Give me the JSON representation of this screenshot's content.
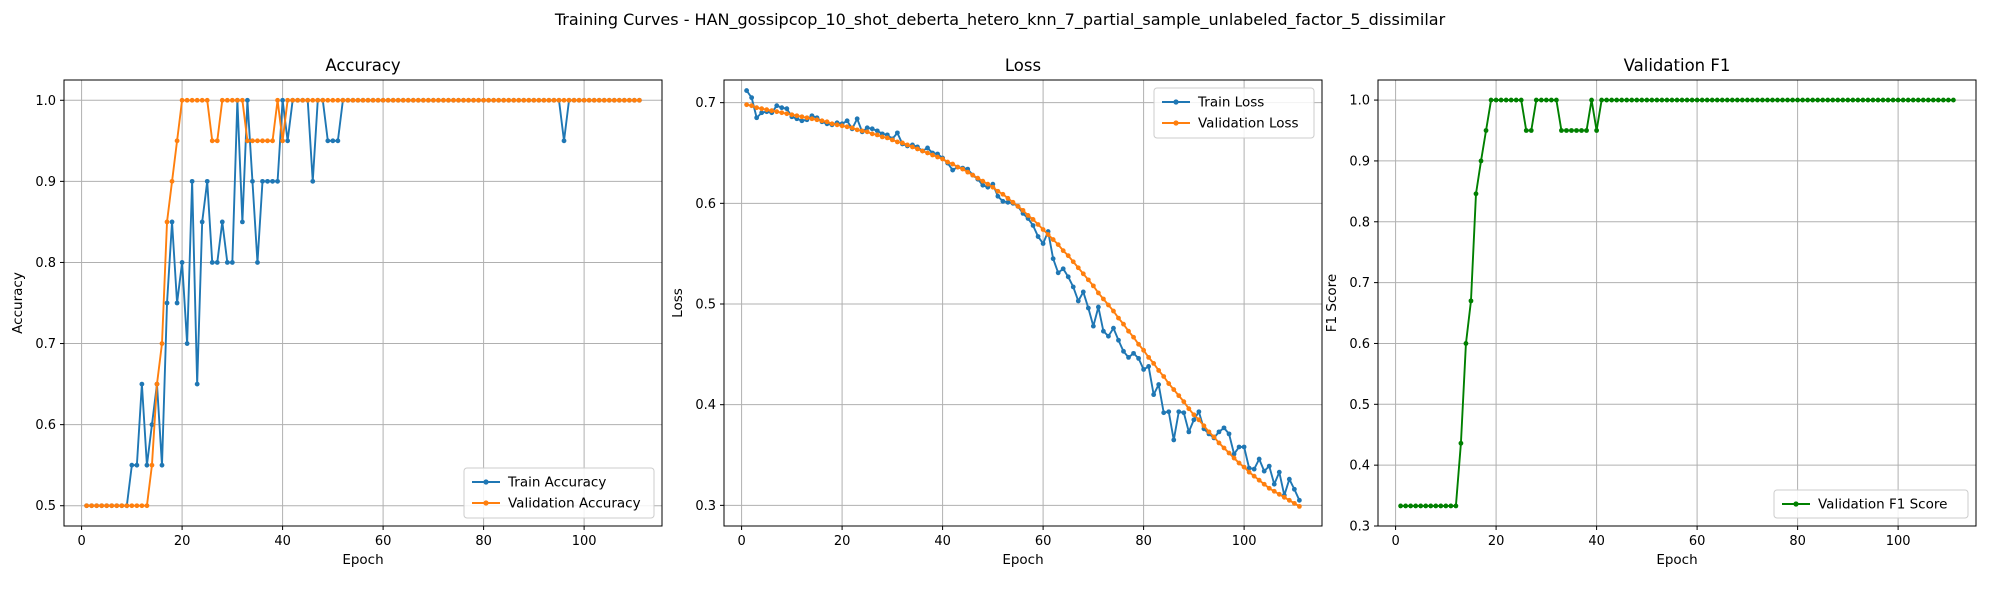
{
  "figure": {
    "title": "Training Curves - HAN_gossipcop_10_shot_deberta_hetero_knn_7_partial_sample_unlabeled_factor_5_dissimilar"
  },
  "colors": {
    "train": "#1f77b4",
    "validation": "#ff7f0e",
    "f1": "#008000",
    "grid": "#b0b0b0",
    "axis": "#000000"
  },
  "chart_data": [
    {
      "type": "line",
      "title": "Accuracy",
      "xlabel": "Epoch",
      "ylabel": "Accuracy",
      "xlim": [
        -3.5,
        115.5
      ],
      "ylim": [
        0.475,
        1.025
      ],
      "xticks": [
        0,
        20,
        40,
        60,
        80,
        100
      ],
      "yticks": [
        0.5,
        0.6,
        0.7,
        0.8,
        0.9,
        1.0
      ],
      "grid": true,
      "legend_position": "lower-right",
      "series": [
        {
          "name": "Train Accuracy",
          "color": "#1f77b4",
          "x_start": 1,
          "values": [
            0.5,
            0.5,
            0.5,
            0.5,
            0.5,
            0.5,
            0.5,
            0.5,
            0.5,
            0.55,
            0.55,
            0.65,
            0.55,
            0.6,
            0.65,
            0.55,
            0.75,
            0.85,
            0.75,
            0.8,
            0.7,
            0.9,
            0.65,
            0.85,
            0.9,
            0.8,
            0.8,
            0.85,
            0.8,
            0.8,
            1.0,
            0.85,
            1.0,
            0.9,
            0.8,
            0.9,
            0.9,
            0.9,
            0.9,
            1.0,
            0.95,
            1.0,
            1.0,
            1.0,
            1.0,
            0.9,
            1.0,
            1.0,
            0.95,
            0.95,
            0.95,
            1.0,
            1.0,
            1.0,
            1.0,
            1.0,
            1.0,
            1.0,
            1.0,
            1.0,
            1.0,
            1.0,
            1.0,
            1.0,
            1.0,
            1.0,
            1.0,
            1.0,
            1.0,
            1.0,
            1.0,
            1.0,
            1.0,
            1.0,
            1.0,
            1.0,
            1.0,
            1.0,
            1.0,
            1.0,
            1.0,
            1.0,
            1.0,
            1.0,
            1.0,
            1.0,
            1.0,
            1.0,
            1.0,
            1.0,
            1.0,
            1.0,
            1.0,
            1.0,
            1.0,
            0.95,
            1.0,
            1.0,
            1.0,
            1.0,
            1.0,
            1.0,
            1.0,
            1.0,
            1.0,
            1.0,
            1.0,
            1.0,
            1.0,
            1.0,
            1.0
          ]
        },
        {
          "name": "Validation Accuracy",
          "color": "#ff7f0e",
          "x_start": 1,
          "values": [
            0.5,
            0.5,
            0.5,
            0.5,
            0.5,
            0.5,
            0.5,
            0.5,
            0.5,
            0.5,
            0.5,
            0.5,
            0.5,
            0.55,
            0.65,
            0.7,
            0.85,
            0.9,
            0.95,
            1.0,
            1.0,
            1.0,
            1.0,
            1.0,
            1.0,
            0.95,
            0.95,
            1.0,
            1.0,
            1.0,
            1.0,
            1.0,
            0.95,
            0.95,
            0.95,
            0.95,
            0.95,
            0.95,
            1.0,
            0.95,
            1.0,
            1.0,
            1.0,
            1.0,
            1.0,
            1.0,
            1.0,
            1.0,
            1.0,
            1.0,
            1.0,
            1.0,
            1.0,
            1.0,
            1.0,
            1.0,
            1.0,
            1.0,
            1.0,
            1.0,
            1.0,
            1.0,
            1.0,
            1.0,
            1.0,
            1.0,
            1.0,
            1.0,
            1.0,
            1.0,
            1.0,
            1.0,
            1.0,
            1.0,
            1.0,
            1.0,
            1.0,
            1.0,
            1.0,
            1.0,
            1.0,
            1.0,
            1.0,
            1.0,
            1.0,
            1.0,
            1.0,
            1.0,
            1.0,
            1.0,
            1.0,
            1.0,
            1.0,
            1.0,
            1.0,
            1.0,
            1.0,
            1.0,
            1.0,
            1.0,
            1.0,
            1.0,
            1.0,
            1.0,
            1.0,
            1.0,
            1.0,
            1.0,
            1.0,
            1.0,
            1.0
          ]
        }
      ]
    },
    {
      "type": "line",
      "title": "Loss",
      "xlabel": "Epoch",
      "ylabel": "Loss",
      "xlim": [
        -3.5,
        115.5
      ],
      "ylim": [
        0.2795,
        0.7225
      ],
      "xticks": [
        0,
        20,
        40,
        60,
        80,
        100
      ],
      "yticks": [
        0.3,
        0.4,
        0.5,
        0.6,
        0.7
      ],
      "grid": true,
      "legend_position": "upper-right",
      "series": [
        {
          "name": "Train Loss",
          "color": "#1f77b4",
          "x_start": 1,
          "values": [
            0.712,
            0.705,
            0.685,
            0.69,
            0.691,
            0.69,
            0.697,
            0.695,
            0.694,
            0.686,
            0.684,
            0.682,
            0.683,
            0.687,
            0.685,
            0.681,
            0.679,
            0.678,
            0.68,
            0.679,
            0.682,
            0.674,
            0.684,
            0.671,
            0.675,
            0.674,
            0.672,
            0.669,
            0.668,
            0.664,
            0.67,
            0.659,
            0.657,
            0.658,
            0.656,
            0.652,
            0.655,
            0.65,
            0.649,
            0.645,
            0.64,
            0.633,
            0.636,
            0.635,
            0.634,
            0.628,
            0.624,
            0.618,
            0.616,
            0.619,
            0.607,
            0.602,
            0.601,
            0.6,
            0.597,
            0.59,
            0.585,
            0.578,
            0.567,
            0.56,
            0.572,
            0.545,
            0.531,
            0.535,
            0.527,
            0.517,
            0.503,
            0.512,
            0.496,
            0.478,
            0.497,
            0.473,
            0.468,
            0.476,
            0.464,
            0.453,
            0.447,
            0.451,
            0.446,
            0.435,
            0.438,
            0.41,
            0.42,
            0.392,
            0.393,
            0.365,
            0.393,
            0.392,
            0.373,
            0.385,
            0.393,
            0.376,
            0.371,
            0.367,
            0.373,
            0.377,
            0.371,
            0.351,
            0.358,
            0.358,
            0.337,
            0.336,
            0.346,
            0.334,
            0.339,
            0.321,
            0.333,
            0.31,
            0.326,
            0.316,
            0.305
          ]
        },
        {
          "name": "Validation Loss",
          "color": "#ff7f0e",
          "x_start": 1,
          "values": [
            0.698,
            0.697,
            0.695,
            0.694,
            0.693,
            0.692,
            0.691,
            0.69,
            0.689,
            0.688,
            0.687,
            0.686,
            0.685,
            0.684,
            0.683,
            0.682,
            0.681,
            0.679,
            0.678,
            0.677,
            0.676,
            0.675,
            0.673,
            0.672,
            0.671,
            0.669,
            0.668,
            0.666,
            0.665,
            0.663,
            0.661,
            0.66,
            0.658,
            0.656,
            0.654,
            0.652,
            0.65,
            0.648,
            0.646,
            0.644,
            0.641,
            0.639,
            0.636,
            0.634,
            0.631,
            0.628,
            0.625,
            0.622,
            0.619,
            0.616,
            0.612,
            0.609,
            0.605,
            0.601,
            0.597,
            0.593,
            0.588,
            0.584,
            0.579,
            0.574,
            0.569,
            0.564,
            0.559,
            0.553,
            0.548,
            0.542,
            0.536,
            0.53,
            0.524,
            0.518,
            0.511,
            0.505,
            0.499,
            0.493,
            0.486,
            0.48,
            0.473,
            0.467,
            0.46,
            0.454,
            0.447,
            0.441,
            0.434,
            0.428,
            0.421,
            0.415,
            0.409,
            0.403,
            0.396,
            0.39,
            0.385,
            0.379,
            0.373,
            0.368,
            0.362,
            0.357,
            0.352,
            0.347,
            0.342,
            0.338,
            0.333,
            0.329,
            0.325,
            0.321,
            0.317,
            0.314,
            0.311,
            0.308,
            0.305,
            0.302,
            0.299
          ]
        }
      ]
    },
    {
      "type": "line",
      "title": "Validation F1",
      "xlabel": "Epoch",
      "ylabel": "F1 Score",
      "xlim": [
        -3.5,
        115.5
      ],
      "ylim": [
        0.3,
        1.033
      ],
      "xticks": [
        0,
        20,
        40,
        60,
        80,
        100
      ],
      "yticks": [
        0.3,
        0.4,
        0.5,
        0.6,
        0.7,
        0.8,
        0.9,
        1.0
      ],
      "grid": true,
      "legend_position": "lower-right",
      "series": [
        {
          "name": "Validation F1 Score",
          "color": "#008000",
          "x_start": 1,
          "values": [
            0.333,
            0.333,
            0.333,
            0.333,
            0.333,
            0.333,
            0.333,
            0.333,
            0.333,
            0.333,
            0.333,
            0.333,
            0.436,
            0.6,
            0.67,
            0.846,
            0.9,
            0.95,
            1.0,
            1.0,
            1.0,
            1.0,
            1.0,
            1.0,
            1.0,
            0.95,
            0.95,
            1.0,
            1.0,
            1.0,
            1.0,
            1.0,
            0.95,
            0.95,
            0.95,
            0.95,
            0.95,
            0.95,
            1.0,
            0.95,
            1.0,
            1.0,
            1.0,
            1.0,
            1.0,
            1.0,
            1.0,
            1.0,
            1.0,
            1.0,
            1.0,
            1.0,
            1.0,
            1.0,
            1.0,
            1.0,
            1.0,
            1.0,
            1.0,
            1.0,
            1.0,
            1.0,
            1.0,
            1.0,
            1.0,
            1.0,
            1.0,
            1.0,
            1.0,
            1.0,
            1.0,
            1.0,
            1.0,
            1.0,
            1.0,
            1.0,
            1.0,
            1.0,
            1.0,
            1.0,
            1.0,
            1.0,
            1.0,
            1.0,
            1.0,
            1.0,
            1.0,
            1.0,
            1.0,
            1.0,
            1.0,
            1.0,
            1.0,
            1.0,
            1.0,
            1.0,
            1.0,
            1.0,
            1.0,
            1.0,
            1.0,
            1.0,
            1.0,
            1.0,
            1.0,
            1.0,
            1.0,
            1.0,
            1.0,
            1.0,
            1.0
          ]
        }
      ]
    }
  ]
}
